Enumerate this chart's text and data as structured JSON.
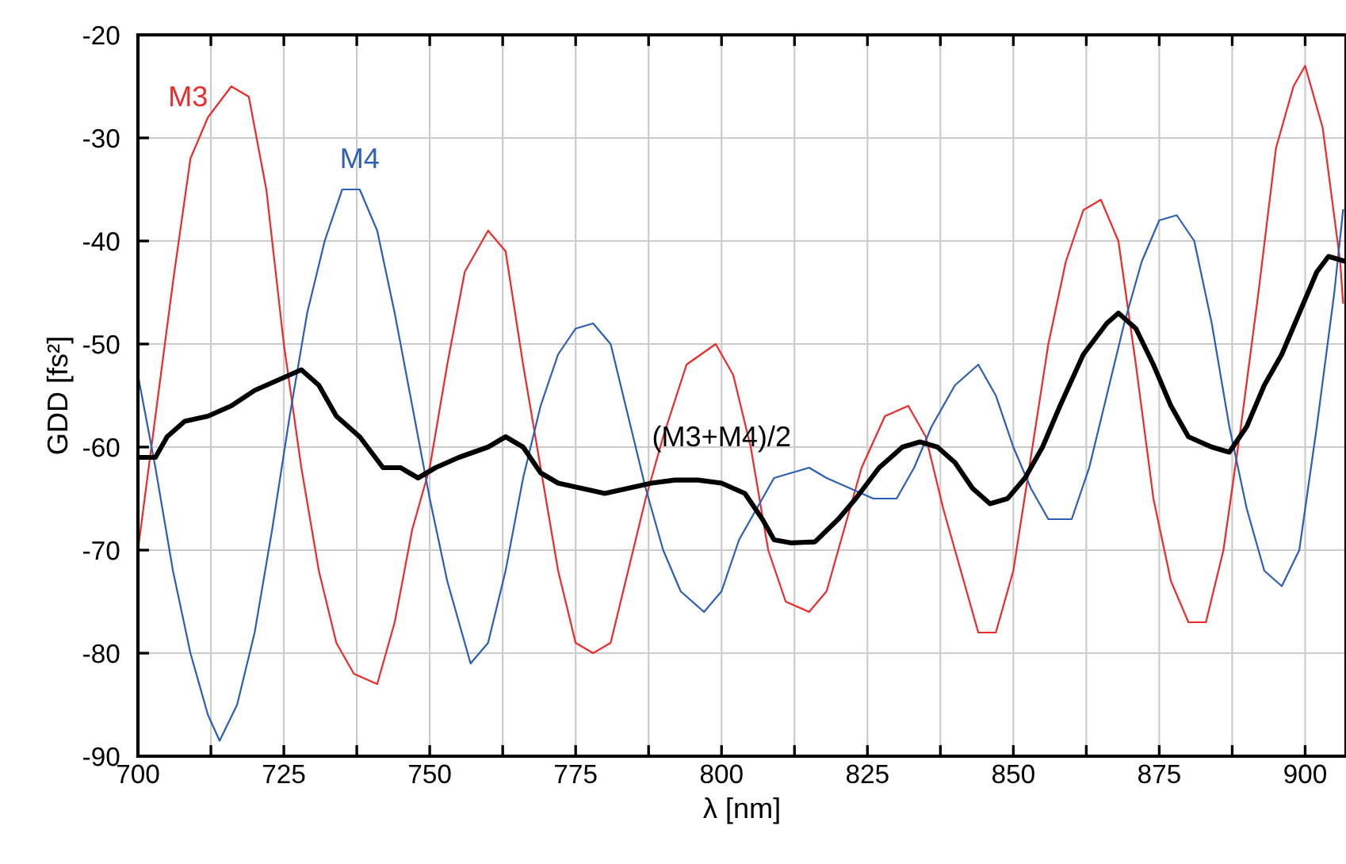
{
  "chart_data": {
    "type": "line",
    "xlabel": "λ [nm]",
    "ylabel": "GDD [fs²]",
    "xlim": [
      700,
      907
    ],
    "ylim": [
      -90,
      -20
    ],
    "xticks": [
      700,
      {
        "value": 712.5,
        "label": null
      },
      725,
      {
        "value": 737.5,
        "label": null
      },
      750,
      {
        "value": 762.5,
        "label": null
      },
      775,
      {
        "value": 787.5,
        "label": null
      },
      800,
      {
        "value": 812.5,
        "label": null
      },
      825,
      {
        "value": 837.5,
        "label": null
      },
      850,
      {
        "value": 862.5,
        "label": null
      },
      875,
      {
        "value": 887.5,
        "label": null
      },
      900
    ],
    "yticks": [
      -90,
      -80,
      -70,
      -60,
      -50,
      -40,
      -30,
      -20
    ],
    "grid": true,
    "legend": false,
    "series": [
      {
        "name": "M3",
        "color": "#ee2b2b",
        "x": [
          700,
          703,
          706,
          709,
          712,
          716,
          719,
          722,
          725,
          728,
          731,
          734,
          737,
          741,
          744,
          747,
          750,
          753,
          756,
          760,
          763,
          766,
          769,
          772,
          775,
          778,
          781,
          784,
          787,
          790,
          794,
          799,
          802,
          805,
          808,
          811,
          815,
          818,
          821,
          824,
          828,
          832,
          835,
          838,
          841,
          844,
          847,
          850,
          853,
          856,
          859,
          862,
          865,
          868,
          871,
          874,
          877,
          880,
          883,
          886,
          889,
          892,
          895,
          898,
          900,
          903,
          906,
          906.5
        ],
        "values": [
          -70,
          -57,
          -44,
          -32,
          -28,
          -25,
          -26,
          -35,
          -50,
          -62,
          -72,
          -79,
          -82,
          -83,
          -77,
          -68,
          -62,
          -52,
          -43,
          -39,
          -41,
          -52,
          -62,
          -72,
          -79,
          -80,
          -79,
          -72,
          -65,
          -59,
          -52,
          -50,
          -53,
          -60,
          -70,
          -75,
          -76,
          -74,
          -68,
          -62,
          -57,
          -56,
          -59,
          -66,
          -72,
          -78,
          -78,
          -72,
          -61,
          -50,
          -42,
          -37,
          -36,
          -40,
          -52,
          -65,
          -73,
          -77,
          -77,
          -70,
          -58,
          -45,
          -31,
          -25,
          -23,
          -29,
          -42,
          -46
        ]
      },
      {
        "name": "M4",
        "color": "#2c5fb5",
        "x": [
          700,
          703,
          706,
          709,
          712,
          714,
          717,
          720,
          723,
          726,
          729,
          732,
          735,
          738,
          741,
          744,
          747,
          750,
          753,
          757,
          760,
          763,
          766,
          769,
          772,
          775,
          778,
          781,
          784,
          787,
          790,
          793,
          797,
          800,
          803,
          806,
          809,
          812,
          815,
          818,
          822,
          826,
          830,
          833,
          836,
          840,
          844,
          847,
          850,
          853,
          856,
          860,
          863,
          866,
          869,
          872,
          875,
          878,
          881,
          884,
          887,
          890,
          893,
          896,
          899,
          902,
          905,
          906.5
        ],
        "values": [
          -53,
          -62,
          -72,
          -80,
          -86,
          -88.5,
          -85,
          -78,
          -68,
          -57,
          -47,
          -40,
          -35,
          -35,
          -39,
          -47,
          -56,
          -65,
          -73,
          -81,
          -79,
          -72,
          -63,
          -56,
          -51,
          -48.5,
          -48,
          -50,
          -57,
          -64,
          -70,
          -74,
          -76,
          -74,
          -69,
          -66,
          -63,
          -62.5,
          -62,
          -63,
          -64,
          -65,
          -65,
          -62,
          -58,
          -54,
          -52,
          -55,
          -60,
          -64,
          -67,
          -67,
          -62,
          -55,
          -48,
          -42,
          -38,
          -37.5,
          -40,
          -48,
          -58,
          -66,
          -72,
          -73.5,
          -70,
          -58,
          -45,
          -37
        ]
      },
      {
        "name": "(M3+M4)/2",
        "color": "#000000",
        "x": [
          700,
          703,
          705,
          708,
          712,
          716,
          720,
          724,
          728,
          731,
          734,
          738,
          742,
          745,
          748,
          751,
          755,
          760,
          763,
          766,
          769,
          772,
          776,
          780,
          784,
          788,
          792,
          796,
          800,
          804,
          807,
          809,
          812,
          816,
          820,
          823,
          827,
          831,
          834,
          837,
          840,
          843,
          846,
          849,
          852,
          855,
          858,
          862,
          866,
          868,
          871,
          874,
          877,
          880,
          884,
          887,
          890,
          893,
          896,
          899,
          902,
          904,
          907
        ],
        "values": [
          -61,
          -61,
          -59,
          -57.5,
          -57,
          -56,
          -54.5,
          -53.5,
          -52.5,
          -54,
          -57,
          -59,
          -62,
          -62,
          -63,
          -62,
          -61,
          -60,
          -59,
          -60,
          -62.5,
          -63.5,
          -64,
          -64.5,
          -64,
          -63.5,
          -63.2,
          -63.2,
          -63.5,
          -64.5,
          -67,
          -69,
          -69.3,
          -69.2,
          -67,
          -65,
          -62,
          -60,
          -59.5,
          -60,
          -61.5,
          -64,
          -65.5,
          -65,
          -63,
          -60,
          -56,
          -51,
          -48,
          -47,
          -48.5,
          -52,
          -56,
          -59,
          -60,
          -60.5,
          -58,
          -54,
          -51,
          -47,
          -43,
          -41.5,
          -42
        ]
      }
    ]
  }
}
